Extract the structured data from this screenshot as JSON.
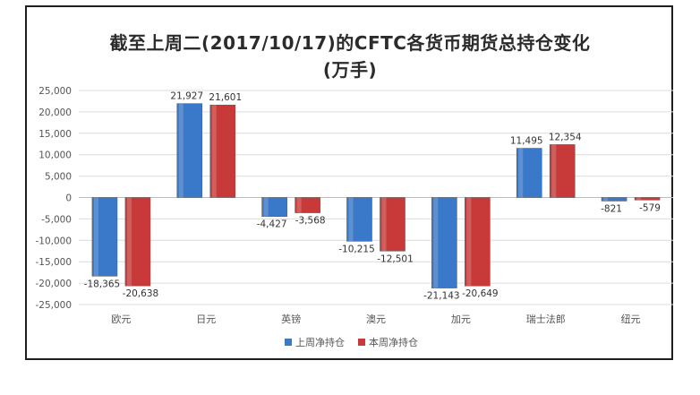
{
  "chart_data": {
    "type": "bar",
    "title": "截至上周二(2017/10/17)的CFTC各货币期货总持仓变化",
    "subtitle": "(万手)",
    "categories": [
      "欧元",
      "日元",
      "英镑",
      "澳元",
      "加元",
      "瑞士法郎",
      "纽元"
    ],
    "series": [
      {
        "name": "上周净持仓",
        "values": [
          -18365,
          21927,
          -4427,
          -10215,
          -21143,
          11495,
          -821
        ],
        "color": "#3a78c9"
      },
      {
        "name": "本周净持仓",
        "values": [
          -20638,
          21601,
          -3568,
          -12501,
          -20649,
          12354,
          -579
        ],
        "color": "#c83a3a"
      }
    ],
    "value_labels": [
      [
        "-18,365",
        "21,927",
        "-4,427",
        "-10,215",
        "-21,143",
        "11,495",
        "-821"
      ],
      [
        "-20,638",
        "21,601",
        "-3,568",
        "-12,501",
        "-20,649",
        "12,354",
        "-579"
      ]
    ],
    "ylim": [
      -25000,
      25000
    ],
    "yticks": [
      25000,
      20000,
      15000,
      10000,
      5000,
      0,
      -5000,
      -10000,
      -15000,
      -20000,
      -25000
    ],
    "ytick_labels": [
      "25,000",
      "20,000",
      "15,000",
      "10,000",
      "5,000",
      "0",
      "-5,000",
      "-10,000",
      "-15,000",
      "-20,000",
      "-25,000"
    ],
    "grid": true,
    "legend_position": "bottom-center"
  }
}
